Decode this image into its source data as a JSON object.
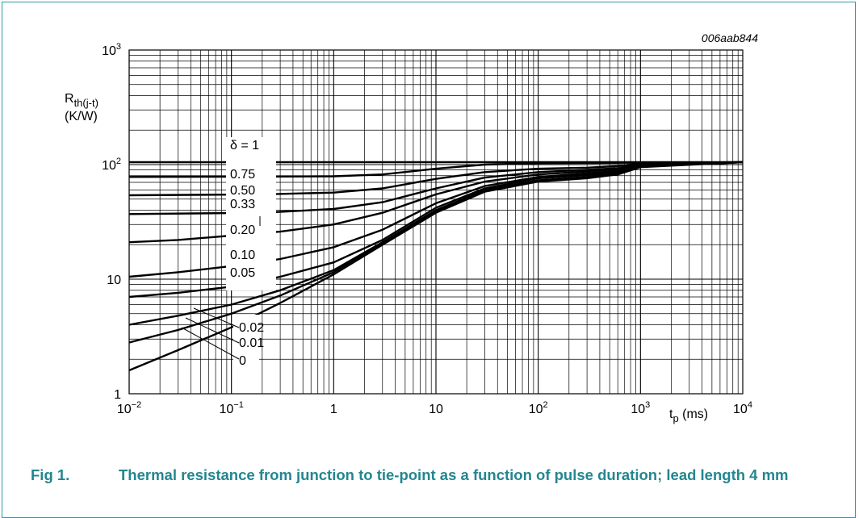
{
  "chart_data": {
    "type": "line",
    "code": "006aab844",
    "x_scale": "log",
    "y_scale": "log",
    "xlim": [
      0.01,
      10000
    ],
    "ylim": [
      1,
      1000
    ],
    "grid": true,
    "ylabel_main": "R",
    "ylabel_sub": "th(j-t)",
    "ylabel_unit": "(K/W)",
    "xlabel_main": "t",
    "xlabel_sub": "p",
    "xlabel_unit": " (ms)",
    "x_ticks": [
      {
        "value": 0.01,
        "base": "10",
        "exp": "−2"
      },
      {
        "value": 0.1,
        "base": "10",
        "exp": "−1"
      },
      {
        "value": 1,
        "base": "1",
        "exp": ""
      },
      {
        "value": 10,
        "base": "10",
        "exp": ""
      },
      {
        "value": 100,
        "base": "10",
        "exp": "2"
      },
      {
        "value": 1000,
        "base": "10",
        "exp": "3"
      },
      {
        "value": 10000,
        "base": "10",
        "exp": "4"
      }
    ],
    "y_ticks": [
      {
        "value": 1,
        "base": "1",
        "exp": ""
      },
      {
        "value": 10,
        "base": "10",
        "exp": ""
      },
      {
        "value": 100,
        "base": "10",
        "exp": "2"
      },
      {
        "value": 1000,
        "base": "10",
        "exp": "3"
      }
    ],
    "series": [
      {
        "name": "δ = 1",
        "points": [
          [
            0.01,
            105
          ],
          [
            10000,
            105
          ]
        ]
      },
      {
        "name": "0.75",
        "points": [
          [
            0.01,
            78
          ],
          [
            0.2,
            78.5
          ],
          [
            1,
            79
          ],
          [
            3,
            82
          ],
          [
            10,
            92
          ],
          [
            30,
            100
          ],
          [
            100,
            103
          ],
          [
            1000,
            104
          ],
          [
            10000,
            105
          ]
        ]
      },
      {
        "name": "0.50",
        "points": [
          [
            0.01,
            54
          ],
          [
            0.2,
            55
          ],
          [
            1,
            57
          ],
          [
            3,
            62
          ],
          [
            10,
            75
          ],
          [
            30,
            86
          ],
          [
            100,
            92
          ],
          [
            300,
            94
          ],
          [
            600,
            97
          ],
          [
            1000,
            103
          ],
          [
            10000,
            105
          ]
        ]
      },
      {
        "name": "0.33",
        "points": [
          [
            0.01,
            37
          ],
          [
            0.2,
            38
          ],
          [
            1,
            41
          ],
          [
            3,
            47
          ],
          [
            10,
            62
          ],
          [
            30,
            77
          ],
          [
            100,
            86
          ],
          [
            300,
            90
          ],
          [
            600,
            93
          ],
          [
            1000,
            101
          ],
          [
            10000,
            105
          ]
        ]
      },
      {
        "name": "0.20",
        "points": [
          [
            0.01,
            21
          ],
          [
            0.03,
            22
          ],
          [
            0.1,
            24
          ],
          [
            0.3,
            26
          ],
          [
            1,
            30
          ],
          [
            3,
            38
          ],
          [
            10,
            55
          ],
          [
            30,
            71
          ],
          [
            100,
            82
          ],
          [
            300,
            87
          ],
          [
            600,
            91
          ],
          [
            1000,
            100
          ],
          [
            10000,
            105
          ]
        ]
      },
      {
        "name": "0.10",
        "points": [
          [
            0.01,
            10.5
          ],
          [
            0.03,
            11.5
          ],
          [
            0.1,
            13
          ],
          [
            0.3,
            15
          ],
          [
            1,
            19
          ],
          [
            3,
            27
          ],
          [
            10,
            46
          ],
          [
            30,
            65
          ],
          [
            100,
            78
          ],
          [
            300,
            84
          ],
          [
            600,
            88
          ],
          [
            1000,
            99
          ],
          [
            10000,
            105
          ]
        ]
      },
      {
        "name": "0.05",
        "points": [
          [
            0.01,
            7
          ],
          [
            0.03,
            7.6
          ],
          [
            0.1,
            8.6
          ],
          [
            0.3,
            10.5
          ],
          [
            1,
            14
          ],
          [
            3,
            22
          ],
          [
            10,
            42
          ],
          [
            30,
            62
          ],
          [
            100,
            76
          ],
          [
            300,
            81
          ],
          [
            600,
            86
          ],
          [
            1000,
            98
          ],
          [
            10000,
            105
          ]
        ]
      },
      {
        "name": "0.02",
        "points": [
          [
            0.01,
            4
          ],
          [
            0.03,
            4.8
          ],
          [
            0.1,
            6
          ],
          [
            0.3,
            8
          ],
          [
            1,
            12
          ],
          [
            3,
            21
          ],
          [
            10,
            40
          ],
          [
            30,
            60
          ],
          [
            100,
            73
          ],
          [
            300,
            78
          ],
          [
            600,
            84
          ],
          [
            1000,
            97
          ],
          [
            10000,
            105
          ]
        ]
      },
      {
        "name": "0.01",
        "points": [
          [
            0.01,
            2.8
          ],
          [
            0.03,
            3.6
          ],
          [
            0.1,
            5
          ],
          [
            0.3,
            7.2
          ],
          [
            1,
            11.5
          ],
          [
            3,
            20.5
          ],
          [
            10,
            39
          ],
          [
            30,
            59
          ],
          [
            100,
            72
          ],
          [
            300,
            77
          ],
          [
            600,
            83
          ],
          [
            1000,
            96
          ],
          [
            10000,
            105
          ]
        ]
      },
      {
        "name": "0",
        "points": [
          [
            0.01,
            1.6
          ],
          [
            0.03,
            2.4
          ],
          [
            0.1,
            3.8
          ],
          [
            0.3,
            6.2
          ],
          [
            1,
            11
          ],
          [
            3,
            20
          ],
          [
            10,
            38
          ],
          [
            30,
            58
          ],
          [
            100,
            71
          ],
          [
            300,
            76
          ],
          [
            600,
            82
          ],
          [
            1000,
            95
          ],
          [
            10000,
            105
          ]
        ]
      }
    ]
  },
  "caption": {
    "label": "Fig 1.",
    "text": "Thermal resistance from junction to tie-point as a function of pulse duration; lead length 4 mm"
  },
  "colors": {
    "frame": "#2a9aa2",
    "caption": "#23868f"
  }
}
